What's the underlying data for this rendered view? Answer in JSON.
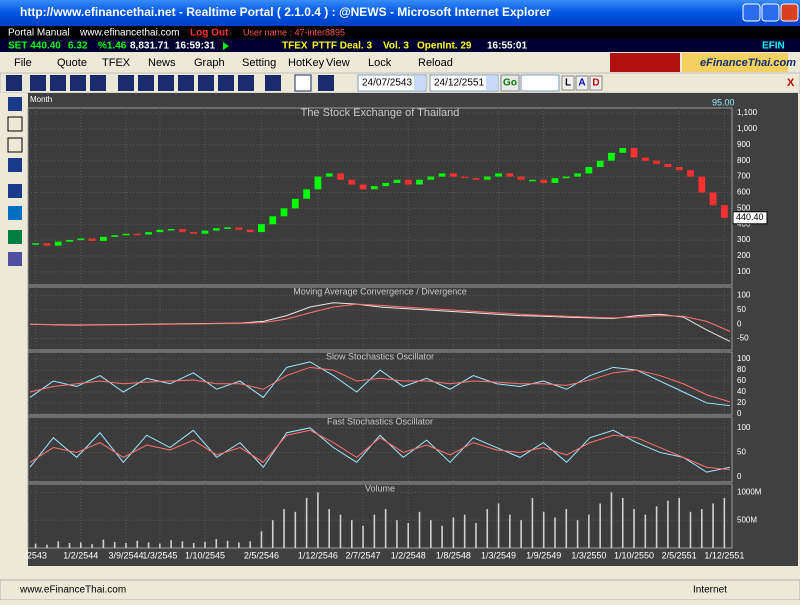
{
  "window": {
    "title": "http://www.efinancethai.net - Realtime Portal ( 2.1.0.4 ) : @NEWS - Microsoft Internet Explorer",
    "status": "www.eFinanceThai.com",
    "zone": "Internet"
  },
  "portal": {
    "manual": "Portal Manual",
    "site": "www.efinancethai.com",
    "logout": "Log Out",
    "user": "User name : 47-inter8895"
  },
  "ticker": {
    "set": "SET 440.40",
    "chg": "6.32",
    "pct": "%1.46",
    "value": "8,831.71",
    "time": "16:59:31",
    "tfex": "TFEX",
    "pttf": "PTTF Deal. 3",
    "vol": "Vol. 3",
    "oi": "OpenInt. 29",
    "time2": "16:55:01",
    "efin": "EFIN"
  },
  "menu": [
    "File",
    "Quote",
    "TFEX",
    "News",
    "Graph",
    "Setting",
    "HotKey",
    "View",
    "Lock",
    "Reload"
  ],
  "logo": "eFinanceThai.com",
  "toolbar": {
    "from": "24/07/2543",
    "to": "24/12/2551",
    "go": "Go",
    "buttons": [
      "L",
      "A",
      "D"
    ],
    "close": "X"
  },
  "chart_data": [
    {
      "type": "candlestick",
      "title": "The Stock Exchange of Thailand",
      "period": "Month",
      "top_label": "95.00",
      "up_color": "#00ff00",
      "down_color": "#ff3030",
      "values": [
        280,
        265,
        290,
        300,
        310,
        295,
        320,
        330,
        340,
        335,
        350,
        365,
        370,
        350,
        340,
        360,
        375,
        380,
        365,
        350,
        400,
        450,
        500,
        560,
        620,
        700,
        720,
        680,
        650,
        620,
        640,
        660,
        680,
        650,
        680,
        700,
        720,
        700,
        690,
        680,
        700,
        720,
        700,
        680,
        680,
        660,
        690,
        700,
        720,
        760,
        800,
        850,
        880,
        820,
        800,
        780,
        760,
        740,
        700,
        600,
        520,
        440.4
      ],
      "last": {
        "value": 440.4,
        "label": "440.40"
      },
      "ylim": [
        17,
        1132
      ],
      "yticks": [
        100,
        200,
        300,
        400,
        500,
        600,
        700,
        800,
        900,
        {
          "value": 1000,
          "label": "1,000"
        },
        {
          "value": 1100,
          "label": "1,100"
        }
      ]
    },
    {
      "type": "line",
      "title": "Moving Average Convergence / Divergence",
      "ylim": [
        -90,
        130
      ],
      "yticks": [
        100,
        50,
        0,
        -50
      ],
      "series": [
        {
          "color": "#e8e8e8",
          "values": [
            0,
            -2,
            -3,
            -2,
            -1,
            0,
            1,
            2,
            3,
            4,
            10,
            30,
            60,
            75,
            70,
            60,
            55,
            50,
            45,
            40,
            35,
            30,
            28,
            25,
            22,
            20,
            30,
            35,
            25,
            -20,
            -60
          ]
        },
        {
          "color": "#ff7070",
          "values": [
            0,
            -1,
            -2,
            -2,
            -2,
            -1,
            0,
            1,
            2,
            3,
            6,
            18,
            40,
            60,
            70,
            66,
            60,
            55,
            50,
            45,
            40,
            35,
            31,
            28,
            25,
            22,
            25,
            30,
            28,
            10,
            -25
          ]
        }
      ]
    },
    {
      "type": "line",
      "title": "Slow Stochastics Oscillator",
      "ylim": [
        -2,
        113
      ],
      "yticks": [
        100,
        80,
        60,
        40,
        20,
        0
      ],
      "series": [
        {
          "color": "#9fe8ff",
          "values": [
            30,
            60,
            50,
            70,
            40,
            65,
            55,
            75,
            45,
            60,
            30,
            85,
            95,
            70,
            40,
            80,
            50,
            65,
            45,
            70,
            55,
            50,
            60,
            45,
            70,
            85,
            80,
            60,
            40,
            20,
            15
          ]
        },
        {
          "color": "#ff7070",
          "values": [
            40,
            50,
            55,
            60,
            55,
            58,
            60,
            62,
            55,
            55,
            45,
            70,
            85,
            80,
            60,
            65,
            60,
            60,
            55,
            60,
            58,
            55,
            55,
            52,
            62,
            75,
            80,
            70,
            55,
            35,
            22
          ]
        }
      ]
    },
    {
      "type": "line",
      "title": "Fast Stochastics Oscillator",
      "ylim": [
        -10,
        122
      ],
      "yticks": [
        100,
        50,
        0
      ],
      "series": [
        {
          "color": "#9fe8ff",
          "values": [
            20,
            80,
            40,
            90,
            30,
            85,
            60,
            95,
            40,
            70,
            20,
            90,
            100,
            60,
            30,
            85,
            40,
            75,
            30,
            80,
            60,
            40,
            70,
            30,
            80,
            95,
            70,
            50,
            40,
            10,
            20
          ]
        },
        {
          "color": "#ff7070",
          "values": [
            30,
            60,
            50,
            70,
            40,
            65,
            55,
            75,
            45,
            60,
            30,
            85,
            95,
            70,
            40,
            80,
            50,
            65,
            45,
            70,
            55,
            50,
            60,
            45,
            70,
            85,
            80,
            60,
            40,
            20,
            15
          ]
        }
      ]
    },
    {
      "type": "bar",
      "title": "Volume",
      "color": "#d0d0d0",
      "ylim": [
        0,
        1150
      ],
      "yticks": [
        {
          "value": 1000,
          "label": "1000M"
        },
        {
          "value": 500,
          "label": "500M"
        }
      ],
      "values": [
        80,
        60,
        120,
        90,
        100,
        70,
        150,
        110,
        90,
        130,
        100,
        80,
        140,
        120,
        90,
        110,
        160,
        130,
        100,
        120,
        300,
        500,
        700,
        650,
        900,
        1000,
        700,
        600,
        500,
        400,
        600,
        700,
        500,
        450,
        650,
        500,
        400,
        550,
        600,
        450,
        700,
        800,
        600,
        500,
        900,
        650,
        550,
        700,
        500,
        600,
        800,
        1000,
        900,
        700,
        600,
        750,
        850,
        900,
        650,
        700,
        800,
        900
      ],
      "categories": [
        "/2543",
        null,
        null,
        null,
        "1/2/2544",
        null,
        null,
        null,
        "3/9/2544",
        null,
        null,
        "1/3/2545",
        null,
        null,
        null,
        "1/10/2545",
        null,
        null,
        null,
        null,
        "2/5/2546",
        null,
        null,
        null,
        null,
        "1/12/2546",
        null,
        null,
        null,
        "2/7/2547",
        null,
        null,
        null,
        "1/2/2548",
        null,
        null,
        null,
        "1/8/2548",
        null,
        null,
        null,
        "1/3/2549",
        null,
        null,
        null,
        "1/9/2549",
        null,
        null,
        null,
        "1/3/2550",
        null,
        null,
        null,
        "1/10/2550",
        null,
        null,
        null,
        "2/5/2551",
        null,
        null,
        null,
        "1/12/2551"
      ]
    }
  ]
}
